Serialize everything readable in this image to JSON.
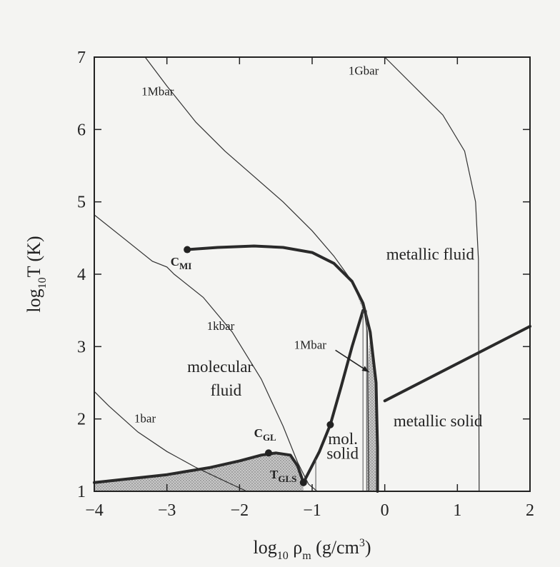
{
  "chart_data": {
    "type": "line",
    "title": "",
    "xlabel": {
      "main": "log",
      "sub": "10",
      "mid": " ρ",
      "sub2": "m",
      "rest": " (g/cm",
      "sup": "3",
      "end": ")"
    },
    "ylabel": {
      "main": "log",
      "sub": "10",
      "rest": "T (K)"
    },
    "xlim": [
      -4,
      2
    ],
    "ylim": [
      1,
      7
    ],
    "xticks": [
      "−4",
      "−3",
      "−2",
      "−1",
      "0",
      "1",
      "2"
    ],
    "yticks": [
      "1",
      "2",
      "3",
      "4",
      "5",
      "6",
      "7"
    ],
    "grid": false,
    "isobars": [
      {
        "name": "1bar",
        "label": "1bar",
        "label_at": [
          -3.45,
          1.95
        ],
        "x": [
          -4,
          -3.8,
          -3.4,
          -3.0,
          -2.6,
          -2.2,
          -1.9
        ],
        "y": [
          2.38,
          2.18,
          1.82,
          1.55,
          1.33,
          1.14,
          1.0
        ]
      },
      {
        "name": "1kbar",
        "label": "1kbar",
        "label_at": [
          -2.45,
          3.23
        ],
        "x": [
          -4,
          -3.6,
          -3.2,
          -3.0,
          -2.9,
          -2.5,
          -2.1,
          -1.7,
          -1.4,
          -1.2,
          -1.05,
          -0.93
        ],
        "y": [
          4.82,
          4.5,
          4.18,
          4.1,
          4.0,
          3.68,
          3.2,
          2.55,
          1.9,
          1.4,
          1.1,
          1.0
        ]
      },
      {
        "name": "1Mbar",
        "label": "1Mbar",
        "label_at": [
          -3.35,
          6.47
        ],
        "x": [
          -3.3,
          -3.0,
          -2.6,
          -2.2,
          -1.8,
          -1.4,
          -1.0,
          -0.7,
          -0.45,
          -0.3,
          -0.24,
          -0.23,
          -0.22
        ],
        "y": [
          7.0,
          6.6,
          6.1,
          5.7,
          5.35,
          5.0,
          4.6,
          4.25,
          3.9,
          3.6,
          3.2,
          2.2,
          1.0
        ]
      },
      {
        "name": "1Gbar",
        "label": "1Gbar",
        "label_at": [
          -0.5,
          6.76
        ],
        "x": [
          0.0,
          0.4,
          0.8,
          1.1,
          1.25,
          1.29,
          1.3
        ],
        "y": [
          7.0,
          6.6,
          6.2,
          5.7,
          5.0,
          4.2,
          1.0
        ]
      }
    ],
    "phase_boundaries": [
      {
        "name": "gas-liquid",
        "x": [
          -4,
          -3.0,
          -2.4,
          -2.0,
          -1.7,
          -1.5,
          -1.3,
          -1.2,
          -1.12
        ],
        "y": [
          1.12,
          1.23,
          1.33,
          1.42,
          1.5,
          1.53,
          1.5,
          1.35,
          1.12
        ]
      },
      {
        "name": "molecular-metallic",
        "x": [
          -2.72,
          -2.3,
          -1.8,
          -1.4,
          -1.0,
          -0.7,
          -0.45,
          -0.3,
          -0.2,
          -0.12,
          -0.1,
          -0.1
        ],
        "y": [
          4.34,
          4.37,
          4.39,
          4.37,
          4.3,
          4.15,
          3.9,
          3.6,
          3.2,
          2.5,
          1.6,
          1.0
        ]
      },
      {
        "name": "melting",
        "x": [
          -1.12,
          -0.9,
          -0.75,
          -0.6,
          -0.45,
          -0.3
        ],
        "y": [
          1.12,
          1.55,
          1.92,
          2.45,
          3.0,
          3.5
        ]
      },
      {
        "name": "metallic-melting",
        "x": [
          0.0,
          2.0
        ],
        "y": [
          2.25,
          3.28
        ]
      }
    ],
    "shaded_regions": [
      {
        "name": "liquid-gas-coexistence",
        "x": [
          -4,
          -3.0,
          -2.4,
          -2.0,
          -1.7,
          -1.5,
          -1.3,
          -1.2,
          -1.12,
          -1.12,
          -4
        ],
        "y": [
          1.12,
          1.23,
          1.33,
          1.42,
          1.5,
          1.53,
          1.5,
          1.35,
          1.12,
          1.0,
          1.0
        ]
      },
      {
        "name": "PPT-coexistence",
        "x": [
          -0.45,
          -0.3,
          -0.2,
          -0.12,
          -0.1,
          -0.1,
          -0.25,
          -0.25,
          -0.2,
          -0.3
        ],
        "y": [
          3.9,
          3.6,
          3.2,
          2.5,
          1.6,
          1.0,
          1.0,
          2.5,
          3.2,
          3.5
        ]
      }
    ],
    "points": [
      {
        "name": "C_MI",
        "x": -2.72,
        "y": 4.34
      },
      {
        "name": "C_GL",
        "x": -1.6,
        "y": 1.53
      },
      {
        "name": "T_GLS",
        "x": -1.12,
        "y": 1.12
      },
      {
        "name": "mol-solid-junction",
        "x": -0.75,
        "y": 1.92
      }
    ],
    "point_labels": [
      {
        "main": "C",
        "sub": "MI",
        "at": [
          -2.95,
          4.12
        ]
      },
      {
        "main": "C",
        "sub": "GL",
        "at": [
          -1.8,
          1.75
        ]
      },
      {
        "main": "T",
        "sub": "GLS",
        "at": [
          -1.58,
          1.18
        ]
      }
    ],
    "region_labels": [
      {
        "text": "metallic fluid",
        "at": [
          0.02,
          4.2
        ]
      },
      {
        "text": "metallic solid",
        "at": [
          0.12,
          1.9
        ]
      },
      {
        "text": "molecular",
        "at": [
          -2.72,
          2.65
        ]
      },
      {
        "text": "fluid",
        "at": [
          -2.4,
          2.32
        ]
      },
      {
        "text": "mol.",
        "at": [
          -0.78,
          1.65
        ]
      },
      {
        "text": "solid",
        "at": [
          -0.8,
          1.45
        ]
      }
    ],
    "annotation": {
      "text": "1Mbar",
      "at": [
        -1.25,
        2.97
      ],
      "arrow_to": [
        -0.22,
        2.65
      ]
    }
  }
}
